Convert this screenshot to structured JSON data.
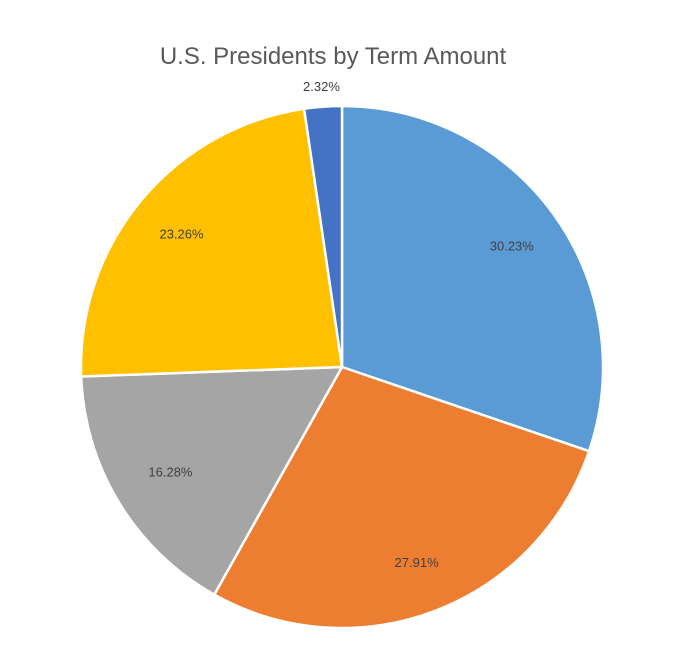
{
  "chart_data": {
    "type": "pie",
    "title": "U.S. Presidents by Term Amount",
    "start_angle_deg": 0,
    "direction": "clockwise",
    "legend": "none",
    "slices": [
      {
        "value": 30.23,
        "label": "30.23%",
        "color": "#5B9BD5"
      },
      {
        "value": 27.91,
        "label": "27.91%",
        "color": "#ED7D31"
      },
      {
        "value": 16.28,
        "label": "16.28%",
        "color": "#A5A5A5"
      },
      {
        "value": 23.26,
        "label": "23.26%",
        "color": "#FFC000"
      },
      {
        "value": 2.32,
        "label": "2.32%",
        "color": "#4472C4"
      }
    ]
  }
}
